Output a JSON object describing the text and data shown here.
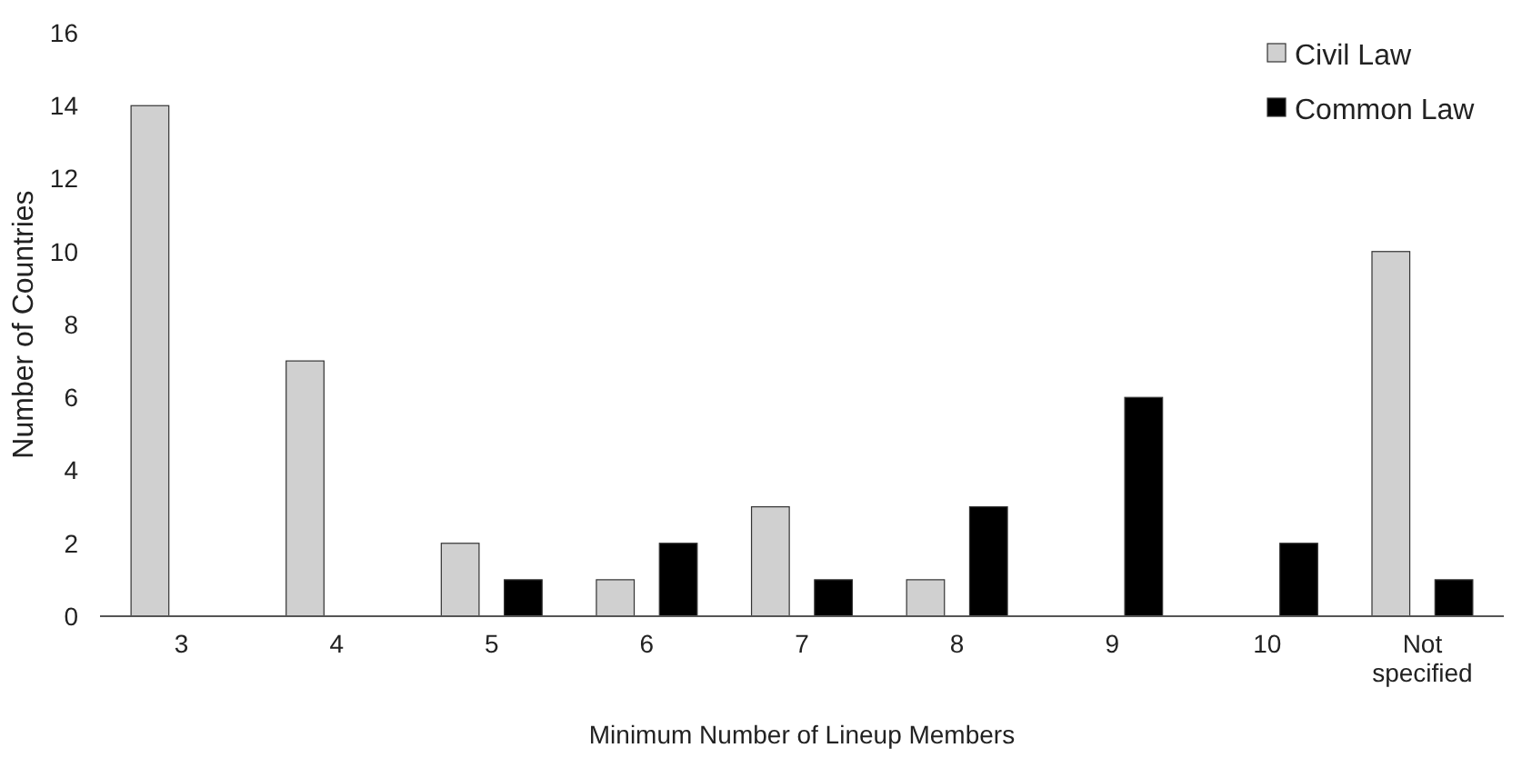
{
  "chart_data": {
    "type": "bar",
    "xlabel": "Minimum Number of Lineup Members",
    "ylabel": "Number of Countries",
    "categories": [
      "3",
      "4",
      "5",
      "6",
      "7",
      "8",
      "9",
      "10",
      "Not specified"
    ],
    "series": [
      {
        "name": "Civil Law",
        "color": "#d0d0d0",
        "values": [
          14,
          7,
          2,
          1,
          3,
          1,
          0,
          0,
          10
        ]
      },
      {
        "name": "Common Law",
        "color": "#000000",
        "values": [
          0,
          0,
          1,
          2,
          1,
          3,
          6,
          2,
          1
        ]
      }
    ],
    "ylim": [
      0,
      16
    ],
    "yticks": [
      0,
      2,
      4,
      6,
      8,
      10,
      12,
      14,
      16
    ],
    "grid": false,
    "legend": "top right"
  }
}
